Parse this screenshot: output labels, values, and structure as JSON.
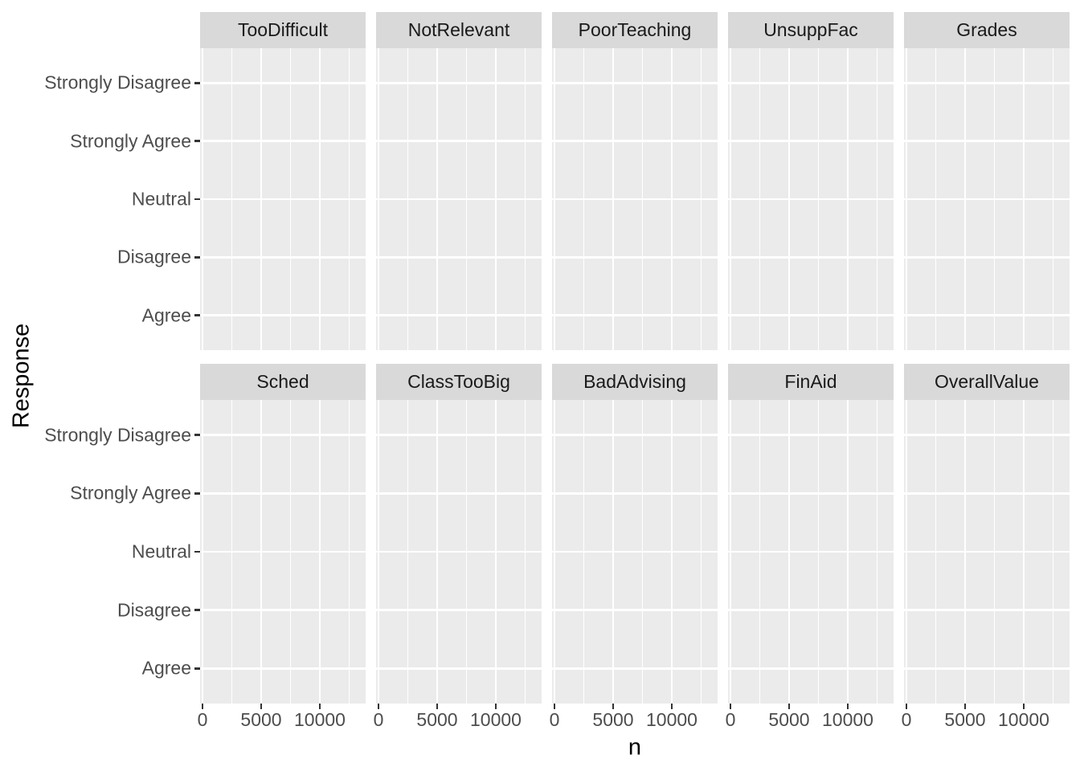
{
  "figure": {
    "y_axis_title": "Response",
    "x_axis_title": "n",
    "facet_rows": [
      {
        "facets": [
          "TooDifficult",
          "NotRelevant",
          "PoorTeaching",
          "UnsuppFac",
          "Grades"
        ]
      },
      {
        "facets": [
          "Sched",
          "ClassTooBig",
          "BadAdvising",
          "FinAid",
          "OverallValue"
        ]
      }
    ],
    "y_tick_labels_top_to_bottom": [
      "Strongly Disagree",
      "Strongly Agree",
      "Neutral",
      "Disagree",
      "Agree"
    ],
    "x_tick_labels": [
      "0",
      "5000",
      "10000"
    ],
    "colors": {
      "background": "#ffffff",
      "strip_fill": "#D9D9D9",
      "strip_text": "#1a1a1a",
      "panel_fill": "#EBEBEB",
      "gridline": "#ffffff",
      "tick_mark": "#333333",
      "tick_label": "#4D4D4D",
      "axis_title": "#000000"
    }
  },
  "chart_data": {
    "type": "bar",
    "title": "",
    "xlabel": "n",
    "ylabel": "Response",
    "facet_grid": {
      "rows": 2,
      "cols": 5
    },
    "facets": [
      "TooDifficult",
      "NotRelevant",
      "PoorTeaching",
      "UnsuppFac",
      "Grades",
      "Sched",
      "ClassTooBig",
      "BadAdvising",
      "FinAid",
      "OverallValue"
    ],
    "y_categories_bottom_to_top": [
      "Agree",
      "Disagree",
      "Neutral",
      "Strongly Agree",
      "Strongly Disagree"
    ],
    "x_ticks": [
      0,
      5000,
      10000
    ],
    "xlim_approx": [
      0,
      13800
    ],
    "grid": "white major and minor vertical gridlines, white major horizontal gridlines on grey panels",
    "legend": "none",
    "series": [],
    "note": "All facet panels render empty: no bars or points are visible in the screenshot."
  }
}
